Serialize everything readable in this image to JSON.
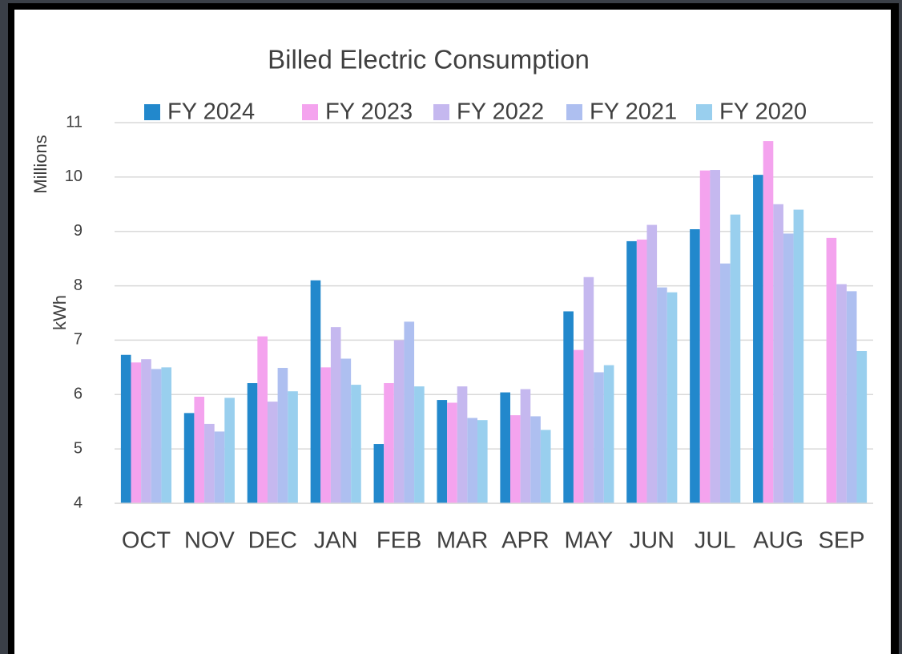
{
  "chart_data": {
    "type": "bar",
    "title": "Billed Electric Consumption",
    "y_label": "kWh",
    "y_unit_label": "Millions",
    "categories": [
      "OCT",
      "NOV",
      "DEC",
      "JAN",
      "FEB",
      "MAR",
      "APR",
      "MAY",
      "JUN",
      "JUL",
      "AUG",
      "SEP"
    ],
    "series": [
      {
        "name": "FY 2024",
        "color": "#2288cc",
        "values": [
          6.73,
          5.66,
          6.21,
          8.1,
          5.09,
          5.9,
          6.04,
          7.53,
          8.82,
          9.04,
          10.04,
          null
        ]
      },
      {
        "name": "FY 2023",
        "color": "#f4a3ee",
        "values": [
          6.59,
          5.96,
          7.07,
          6.5,
          6.21,
          5.85,
          5.62,
          6.82,
          8.85,
          10.12,
          10.66,
          8.88
        ]
      },
      {
        "name": "FY 2022",
        "color": "#c5b8ef",
        "values": [
          6.65,
          5.46,
          5.87,
          7.24,
          7.0,
          6.15,
          6.1,
          8.16,
          9.12,
          10.13,
          9.5,
          8.03
        ]
      },
      {
        "name": "FY 2021",
        "color": "#aebff0",
        "values": [
          6.47,
          5.32,
          6.49,
          6.66,
          7.34,
          5.57,
          5.6,
          6.41,
          7.97,
          8.41,
          8.96,
          7.9
        ]
      },
      {
        "name": "FY 2020",
        "color": "#99cfee",
        "values": [
          6.5,
          5.94,
          6.06,
          6.18,
          6.15,
          5.53,
          5.35,
          6.54,
          7.88,
          9.31,
          9.4,
          6.8
        ]
      }
    ],
    "ylim": [
      4,
      11
    ],
    "yticks": [
      4,
      5,
      6,
      7,
      8,
      9,
      10,
      11
    ],
    "grid": true,
    "legend": "top"
  }
}
